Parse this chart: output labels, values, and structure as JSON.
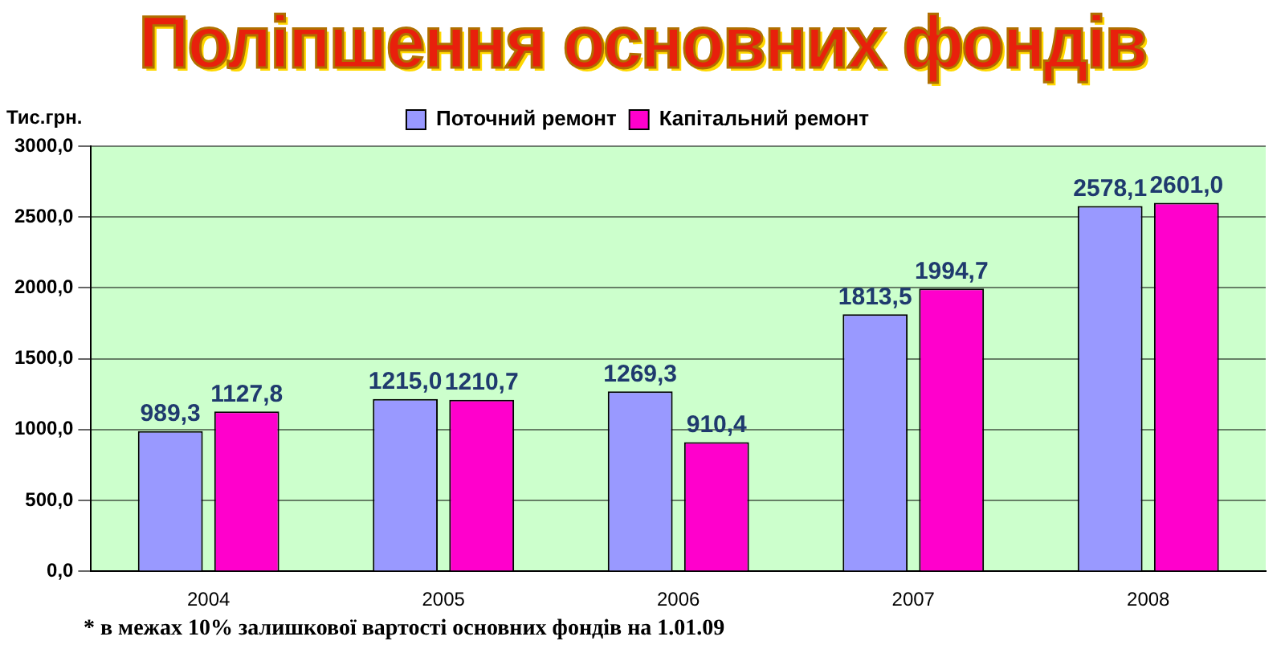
{
  "chart_data": {
    "type": "bar",
    "title": "Поліпшення основних фондів",
    "ylabel": "Тис.грн.",
    "categories": [
      "2004",
      "2005",
      "2006",
      "2007",
      "2008"
    ],
    "series": [
      {
        "name": "Поточний ремонт",
        "color": "#9999ff",
        "values": [
          989.3,
          1215.0,
          1269.3,
          1813.5,
          2578.1
        ],
        "value_labels": [
          "989,3",
          "1215,0",
          "1269,3",
          "1813,5",
          "2578,1"
        ]
      },
      {
        "name": "Капітальний ремонт",
        "color": "#ff00cc",
        "values": [
          1127.8,
          1210.7,
          910.4,
          1994.7,
          2601.0
        ],
        "value_labels": [
          "1127,8",
          "1210,7",
          "910,4",
          "1994,7",
          "2601,0"
        ]
      }
    ],
    "ylim": [
      0,
      3000
    ],
    "yticks": [
      {
        "value": 0,
        "label": "0,0"
      },
      {
        "value": 500,
        "label": "500,0"
      },
      {
        "value": 1000,
        "label": "1000,0"
      },
      {
        "value": 1500,
        "label": "1500,0"
      },
      {
        "value": 2000,
        "label": "2000,0"
      },
      {
        "value": 2500,
        "label": "2500,0"
      },
      {
        "value": 3000,
        "label": "3000,0"
      }
    ],
    "grid": "y",
    "legend": "top",
    "annotations": [
      "* в межах 10% залишкової вартості основних фондів на 1.01.09"
    ]
  }
}
